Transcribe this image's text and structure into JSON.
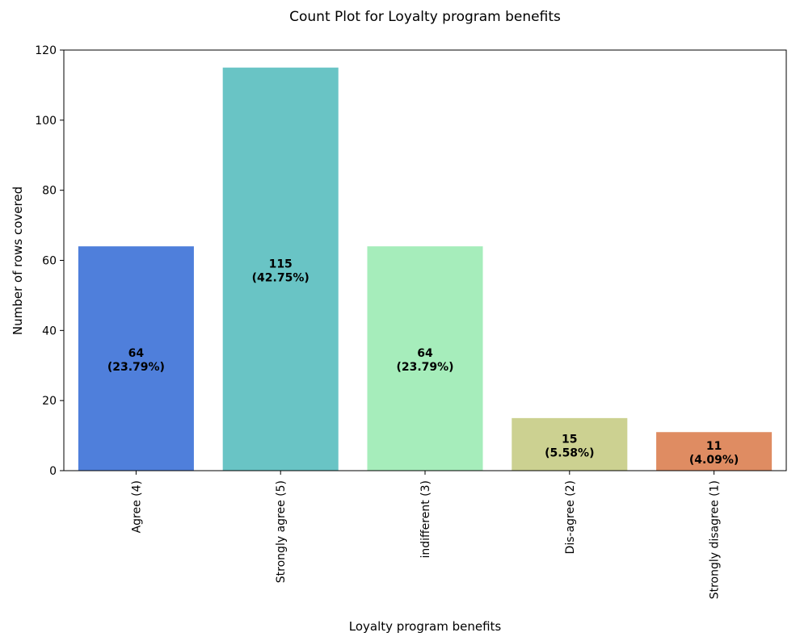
{
  "chart_data": {
    "type": "bar",
    "title": "Count Plot for Loyalty program benefits",
    "xlabel": "Loyalty program benefits",
    "ylabel": "Number of rows covered",
    "ylim": [
      0,
      120
    ],
    "yticks": [
      0,
      20,
      40,
      60,
      80,
      100,
      120
    ],
    "categories": [
      "Agree (4)",
      "Strongly agree (5)",
      "indifferent (3)",
      "Dis-agree (2)",
      "Strongly disagree (1)"
    ],
    "values": [
      64,
      115,
      64,
      15,
      11
    ],
    "percent_labels": [
      "(23.79%)",
      "(42.75%)",
      "(23.79%)",
      "(5.58%)",
      "(4.09%)"
    ],
    "colors": [
      "#4f7fdb",
      "#69c4c5",
      "#a6edbb",
      "#ccd191",
      "#df8c62"
    ],
    "grid": false,
    "legend": "none"
  }
}
